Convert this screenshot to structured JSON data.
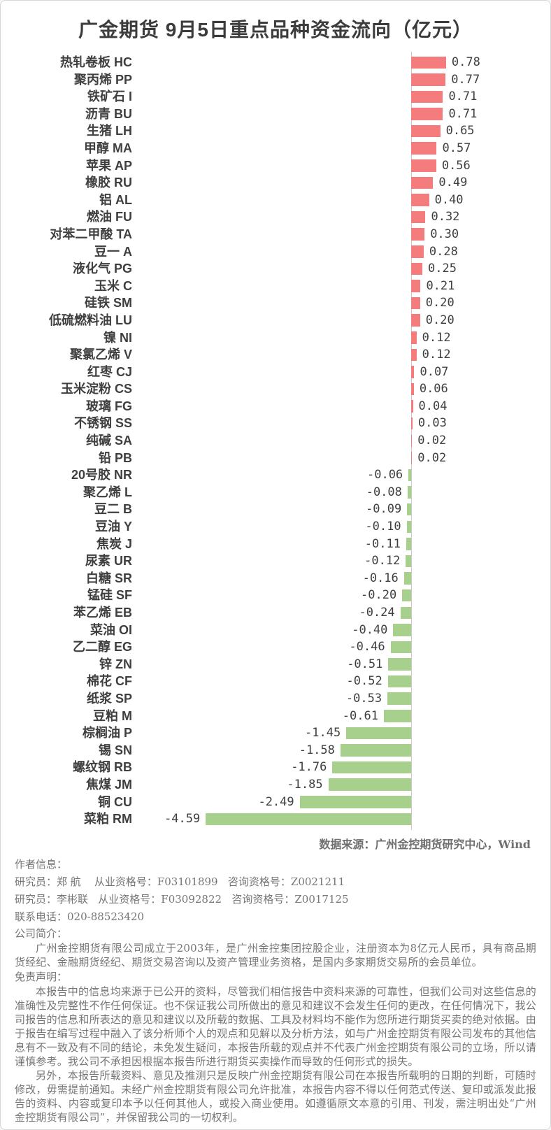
{
  "page": {
    "title": "广金期货 9月5日重点品种资金流向（亿元）"
  },
  "chart_data": {
    "type": "bar",
    "orientation": "horizontal",
    "title": "广金期货 9月5日重点品种资金流向（亿元）",
    "unit": "亿元",
    "grid": false,
    "legend": "none",
    "xlim": [
      -4.8,
      1.0
    ],
    "positive_color": "#f47c7c",
    "negative_color": "#a8d08d",
    "categories": [
      "热轧卷板 HC",
      "聚丙烯 PP",
      "铁矿石 I",
      "沥青 BU",
      "生猪 LH",
      "甲醇 MA",
      "苹果 AP",
      "橡胶 RU",
      "铝 AL",
      "燃油 FU",
      "对苯二甲酸 TA",
      "豆一 A",
      "液化气 PG",
      "玉米 C",
      "硅铁 SM",
      "低硫燃料油 LU",
      "镍 NI",
      "聚氯乙烯 V",
      "红枣 CJ",
      "玉米淀粉 CS",
      "玻璃 FG",
      "不锈钢 SS",
      "纯碱 SA",
      "铅 PB",
      "20号胶 NR",
      "聚乙烯 L",
      "豆二 B",
      "豆油 Y",
      "焦炭 J",
      "尿素 UR",
      "白糖 SR",
      "锰硅 SF",
      "苯乙烯 EB",
      "菜油 OI",
      "乙二醇 EG",
      "锌 ZN",
      "棉花 CF",
      "纸浆 SP",
      "豆粕 M",
      "棕榈油 P",
      "锡 SN",
      "螺纹钢 RB",
      "焦煤 JM",
      "铜 CU",
      "菜粕 RM"
    ],
    "values": [
      0.78,
      0.77,
      0.71,
      0.71,
      0.65,
      0.57,
      0.56,
      0.49,
      0.4,
      0.32,
      0.3,
      0.28,
      0.25,
      0.21,
      0.2,
      0.2,
      0.12,
      0.12,
      0.07,
      0.06,
      0.04,
      0.03,
      0.02,
      0.02,
      -0.06,
      -0.08,
      -0.09,
      -0.1,
      -0.11,
      -0.12,
      -0.16,
      -0.2,
      -0.24,
      -0.4,
      -0.46,
      -0.51,
      -0.52,
      -0.53,
      -0.61,
      -1.45,
      -1.58,
      -1.76,
      -1.85,
      -2.49,
      -4.59
    ]
  },
  "footer": {
    "source": "数据来源：广州金控期货研究中心，Wind",
    "author_header": "作者信息：",
    "author_lines": [
      "研究员：郑 航    从业资格号：F03101899   咨询资格号：Z0021211",
      "研究员：李彬联   从业资格号：F03092822   咨询资格号：Z0017125"
    ],
    "phone": "联系电话：020-88523420",
    "company_header": "公司简介：",
    "company_intro": "广州金控期货有限公司成立于2003年，是广州金控集团控股企业，注册资本为8亿元人民币，具有商品期货经纪、金融期货经纪、期货交易咨询以及资产管理业务资格，是国内多家期货交易所的会员单位。",
    "disclaimer_header": "免责声明：",
    "disclaimer_paragraphs": [
      "本报告中的信息均来源于已公开的资料，尽管我们相信报告中资料来源的可靠性，但我们公司对这些信息的准确性及完整性不作任何保证。也不保证我公司所做出的意见和建议不会发生任何的更改，在任何情况下，我公司报告的信息和所表达的意见和建议以及所载的数据、工具及材料均不能作为您所进行期货买卖的绝对依据。由于报告在编写过程中融入了该分析师个人的观点和见解以及分析方法，如与广州金控期货有限公司发布的其他信息有不一致及有不同的结论，未免发生疑问，本报告所载的观点并不代表广州金控期货有限公司的立场，所以请谨慎参考。我公司不承担因根据本报告所进行期货买卖操作而导致的任何形式的损失。",
      "另外，本报告所载资料、意见及推测只是反映广州金控期货有限公司在本报告所载明的日期的判断，可随时修改，毋需提前通知。未经广州金控期货有限公司允许批准，本报告内容不得以任何范式传送、复印或派发此报告的资料、内容或复印本予以任何其他人，或投入商业使用。如遵循原文本意的引用、刊发，需注明出处“广州金控期货有限公司”，并保留我公司的一切权利。"
    ]
  }
}
